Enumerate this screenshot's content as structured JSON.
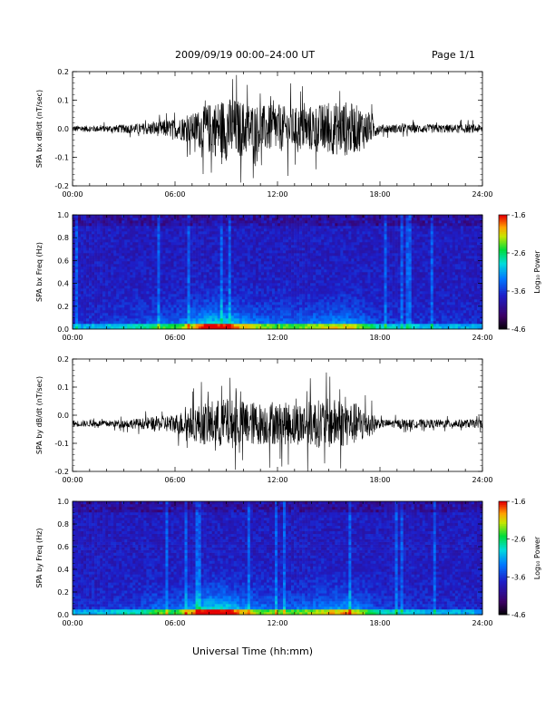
{
  "header": {
    "title": "2009/09/19  00:00–24:00 UT",
    "page": "Page 1/1"
  },
  "xlabel": "Universal Time (hh:mm)",
  "chart_data": [
    {
      "type": "line",
      "panel": "bx-timeseries",
      "ylabel": "SPA bx dB/dt (nT/sec)",
      "ylim": [
        -0.2,
        0.2
      ],
      "yticks": [
        "-0.2",
        "-0.1",
        "0.0",
        "0.1",
        "0.2"
      ],
      "xticks": [
        "00:00",
        "06:00",
        "12:00",
        "18:00",
        "24:00"
      ],
      "xlim_hours": [
        0,
        24
      ],
      "baseline": 0.0,
      "envelope": {
        "hours": [
          0,
          1,
          2,
          3,
          4,
          5,
          6,
          7,
          8,
          9,
          10,
          11,
          12,
          13,
          14,
          15,
          16,
          17,
          18,
          19,
          20,
          21,
          22,
          23,
          24
        ],
        "amplitude": [
          0.015,
          0.015,
          0.015,
          0.02,
          0.025,
          0.035,
          0.045,
          0.07,
          0.12,
          0.15,
          0.13,
          0.11,
          0.11,
          0.1,
          0.11,
          0.12,
          0.13,
          0.1,
          0.02,
          0.02,
          0.02,
          0.02,
          0.02,
          0.02,
          0.02
        ]
      }
    },
    {
      "type": "heatmap",
      "panel": "bx-spectrogram",
      "ylabel": "SPA bx Freq (Hz)",
      "ylim": [
        0.0,
        1.0
      ],
      "yticks": [
        "0.0",
        "0.2",
        "0.4",
        "0.6",
        "0.8",
        "1.0"
      ],
      "xticks": [
        "00:00",
        "06:00",
        "12:00",
        "18:00",
        "24:00"
      ],
      "colorbar": {
        "label": "Log₁₀ Power",
        "ticks": [
          "-1.6",
          "-2.6",
          "-3.6",
          "-4.6"
        ],
        "range": [
          -4.6,
          -1.6
        ]
      },
      "activity": {
        "hours": [
          0,
          2,
          4,
          5,
          6,
          7,
          8,
          9,
          10,
          11,
          12,
          13,
          14,
          15,
          16,
          17,
          18,
          20,
          24
        ],
        "level": [
          0.1,
          0.15,
          0.25,
          0.35,
          0.35,
          0.55,
          0.8,
          0.75,
          0.55,
          0.45,
          0.4,
          0.4,
          0.45,
          0.5,
          0.55,
          0.4,
          0.2,
          0.15,
          0.1
        ]
      }
    },
    {
      "type": "line",
      "panel": "by-timeseries",
      "ylabel": "SPA by dB/dt (nT/sec)",
      "ylim": [
        -0.2,
        0.2
      ],
      "yticks": [
        "-0.2",
        "-0.1",
        "0.0",
        "0.1",
        "0.2"
      ],
      "xticks": [
        "00:00",
        "06:00",
        "12:00",
        "18:00",
        "24:00"
      ],
      "xlim_hours": [
        0,
        24
      ],
      "baseline": -0.03,
      "envelope": {
        "hours": [
          0,
          1,
          2,
          3,
          4,
          5,
          6,
          7,
          8,
          9,
          10,
          11,
          12,
          13,
          14,
          15,
          16,
          17,
          18,
          19,
          20,
          21,
          22,
          23,
          24
        ],
        "amplitude": [
          0.015,
          0.015,
          0.015,
          0.02,
          0.025,
          0.035,
          0.045,
          0.08,
          0.11,
          0.12,
          0.11,
          0.1,
          0.1,
          0.1,
          0.11,
          0.12,
          0.11,
          0.09,
          0.02,
          0.02,
          0.02,
          0.02,
          0.02,
          0.02,
          0.02
        ]
      }
    },
    {
      "type": "heatmap",
      "panel": "by-spectrogram",
      "ylabel": "SPA by Freq (Hz)",
      "ylim": [
        0.0,
        1.0
      ],
      "yticks": [
        "0.0",
        "0.2",
        "0.4",
        "0.6",
        "0.8",
        "1.0"
      ],
      "xticks": [
        "00:00",
        "06:00",
        "12:00",
        "18:00",
        "24:00"
      ],
      "colorbar": {
        "label": "Log₁₀ Power",
        "ticks": [
          "-1.6",
          "-2.6",
          "-3.6",
          "-4.6"
        ],
        "range": [
          -4.6,
          -1.6
        ]
      },
      "activity": {
        "hours": [
          0,
          2,
          4,
          5,
          6,
          7,
          8,
          9,
          10,
          11,
          12,
          13,
          14,
          15,
          16,
          17,
          18,
          20,
          24
        ],
        "level": [
          0.1,
          0.15,
          0.25,
          0.4,
          0.35,
          0.6,
          0.85,
          0.8,
          0.55,
          0.45,
          0.4,
          0.4,
          0.45,
          0.55,
          0.6,
          0.45,
          0.2,
          0.15,
          0.1
        ]
      }
    }
  ]
}
